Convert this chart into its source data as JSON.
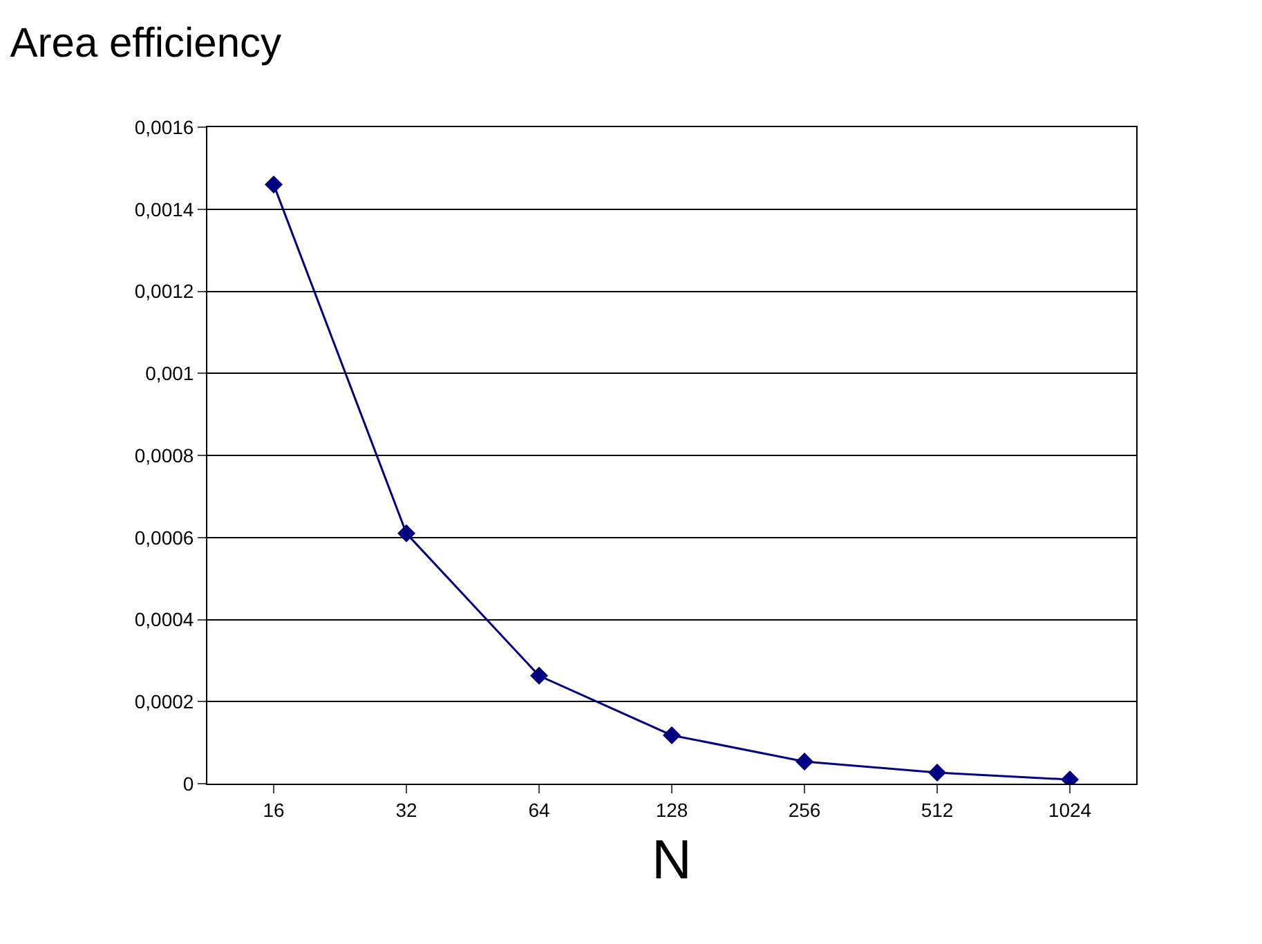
{
  "chart_data": {
    "type": "line",
    "title": "Area efficiency",
    "xlabel": "N",
    "categories": [
      "16",
      "32",
      "64",
      "128",
      "256",
      "512",
      "1024"
    ],
    "series": [
      {
        "color": "#000080",
        "values": [
          0.00146,
          0.00061,
          0.000263,
          0.000118,
          5.4e-05,
          2.7e-05,
          1e-05
        ]
      }
    ],
    "ylim": [
      0,
      0.0016
    ],
    "yticks": [
      0,
      {
        "value": 0.0002,
        "label": "0,0002"
      },
      {
        "value": 0.0004,
        "label": "0,0004"
      },
      {
        "value": 0.0006,
        "label": "0,0006"
      },
      {
        "value": 0.0008,
        "label": "0,0008"
      },
      {
        "value": 0.001,
        "label": "0,001"
      },
      {
        "value": 0.0012,
        "label": "0,0012"
      },
      {
        "value": 0.0014,
        "label": "0,0014"
      },
      {
        "value": 0.0016,
        "label": "0,0016"
      }
    ],
    "grid": "y",
    "marker": "diamond",
    "line_style": "solid",
    "legend": false
  }
}
